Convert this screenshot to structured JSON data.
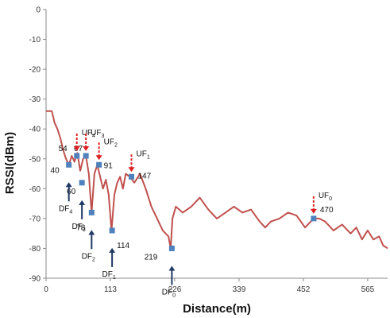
{
  "chart_data": {
    "type": "line",
    "title": "",
    "xlabel": "Distance(m)",
    "ylabel": "RSSI(dBm)",
    "xlim": [
      0,
      600
    ],
    "ylim": [
      -90,
      0
    ],
    "x_ticks": [
      0,
      113,
      226,
      339,
      452,
      565
    ],
    "y_ticks": [
      0,
      -10,
      -20,
      -30,
      -40,
      -50,
      -60,
      -70,
      -80,
      -90
    ],
    "line_color": "#c0504d",
    "marker_color": "#4f81bd",
    "up_arrow_color": "#1f3864",
    "down_arrow_color": "#e02020",
    "grid": false,
    "series": [
      {
        "values": [
          [
            0,
            -34
          ],
          [
            10,
            -34
          ],
          [
            15,
            -38
          ],
          [
            20,
            -40
          ],
          [
            25,
            -43
          ],
          [
            30,
            -47
          ],
          [
            35,
            -50
          ],
          [
            40,
            -52
          ],
          [
            45,
            -49
          ],
          [
            50,
            -51
          ],
          [
            55,
            -48
          ],
          [
            60,
            -54
          ],
          [
            65,
            -50
          ],
          [
            70,
            -49
          ],
          [
            75,
            -55
          ],
          [
            80,
            -68
          ],
          [
            85,
            -55
          ],
          [
            90,
            -52
          ],
          [
            95,
            -56
          ],
          [
            100,
            -60
          ],
          [
            105,
            -57
          ],
          [
            110,
            -62
          ],
          [
            115,
            -74
          ],
          [
            120,
            -62
          ],
          [
            125,
            -58
          ],
          [
            130,
            -56
          ],
          [
            135,
            -60
          ],
          [
            140,
            -55
          ],
          [
            147,
            -56
          ],
          [
            155,
            -58
          ],
          [
            165,
            -55
          ],
          [
            175,
            -60
          ],
          [
            185,
            -66
          ],
          [
            195,
            -70
          ],
          [
            205,
            -74
          ],
          [
            215,
            -76
          ],
          [
            219,
            -80
          ],
          [
            222,
            -70
          ],
          [
            228,
            -66
          ],
          [
            240,
            -68
          ],
          [
            255,
            -66
          ],
          [
            270,
            -63
          ],
          [
            285,
            -67
          ],
          [
            300,
            -70
          ],
          [
            315,
            -68
          ],
          [
            330,
            -66
          ],
          [
            345,
            -68
          ],
          [
            360,
            -67
          ],
          [
            375,
            -71
          ],
          [
            385,
            -73
          ],
          [
            395,
            -71
          ],
          [
            410,
            -70
          ],
          [
            425,
            -68
          ],
          [
            440,
            -69
          ],
          [
            455,
            -73
          ],
          [
            470,
            -70
          ],
          [
            480,
            -70
          ],
          [
            490,
            -71
          ],
          [
            505,
            -74
          ],
          [
            520,
            -72
          ],
          [
            535,
            -75
          ],
          [
            545,
            -73
          ],
          [
            555,
            -77
          ],
          [
            565,
            -74
          ],
          [
            575,
            -77
          ],
          [
            585,
            -76
          ],
          [
            592,
            -79
          ],
          [
            600,
            -80
          ]
        ]
      }
    ],
    "points": [
      {
        "label": "40",
        "x": 40,
        "y": -52
      },
      {
        "label": "54",
        "x": 54,
        "y": -49
      },
      {
        "label": "60",
        "x": 63,
        "y": -58
      },
      {
        "label": "67",
        "x": 70,
        "y": -49
      },
      {
        "label": "78",
        "x": 80,
        "y": -68
      },
      {
        "label": "91",
        "x": 93,
        "y": -52
      },
      {
        "label": "114",
        "x": 116,
        "y": -74
      },
      {
        "label": "147",
        "x": 150,
        "y": -56
      },
      {
        "label": "219",
        "x": 221,
        "y": -80
      },
      {
        "label": "470",
        "x": 470,
        "y": -70
      }
    ],
    "down_arrows": [
      {
        "name": "UF",
        "sub": "4",
        "x": 54
      },
      {
        "name": "UF",
        "sub": "3",
        "x": 70
      },
      {
        "name": "UF",
        "sub": "2",
        "x": 93
      },
      {
        "name": "UF",
        "sub": "1",
        "x": 150
      },
      {
        "name": "UF",
        "sub": "0",
        "x": 470
      }
    ],
    "up_arrows": [
      {
        "name": "DF",
        "sub": "4",
        "x": 40
      },
      {
        "name": "DF",
        "sub": "3",
        "x": 63
      },
      {
        "name": "DF",
        "sub": "2",
        "x": 80
      },
      {
        "name": "DF",
        "sub": "1",
        "x": 116
      },
      {
        "name": "DF",
        "sub": "0",
        "x": 221
      }
    ]
  }
}
